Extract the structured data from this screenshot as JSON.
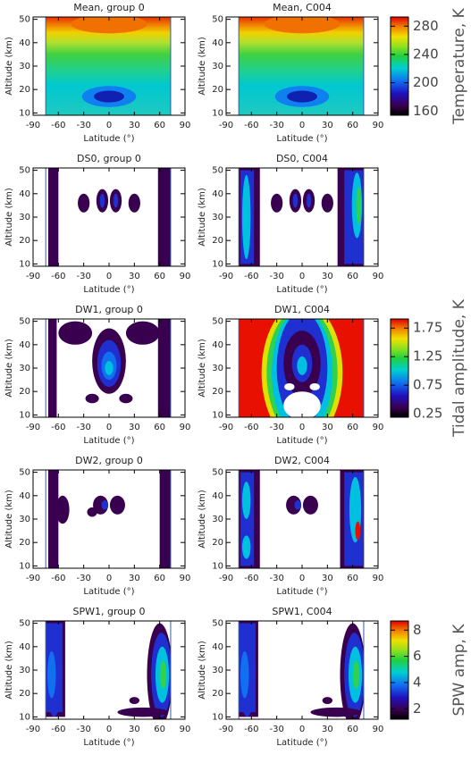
{
  "chart_data": [
    {
      "type": "contour",
      "title": "Mean, group 0",
      "xlabel": "Latitude (°)",
      "ylabel": "Altitude (km)",
      "xlim": [
        -90,
        90
      ],
      "xticks": [
        -90,
        -60,
        -30,
        0,
        30,
        60,
        90
      ],
      "ylim": [
        9,
        51
      ],
      "yticks": [
        10,
        20,
        30,
        40,
        50
      ]
    },
    {
      "type": "contour",
      "title": "Mean, C004",
      "xlabel": "Latitude (°)",
      "ylabel": "Altitude (km)",
      "xlim": [
        -90,
        90
      ],
      "xticks": [
        -90,
        -60,
        -30,
        0,
        30,
        60,
        90
      ],
      "ylim": [
        9,
        51
      ],
      "yticks": [
        10,
        20,
        30,
        40,
        50
      ]
    },
    {
      "type": "contour",
      "title": "DS0, group 0",
      "xlabel": "Latitude (°)",
      "ylabel": "Altitude (km)",
      "xlim": [
        -90,
        90
      ],
      "xticks": [
        -90,
        -60,
        -30,
        0,
        30,
        60,
        90
      ],
      "ylim": [
        9,
        51
      ],
      "yticks": [
        10,
        20,
        30,
        40,
        50
      ]
    },
    {
      "type": "contour",
      "title": "DS0, C004",
      "xlabel": "Latitude (°)",
      "ylabel": "Altitude (km)",
      "xlim": [
        -90,
        90
      ],
      "xticks": [
        -90,
        -60,
        -30,
        0,
        30,
        60,
        90
      ],
      "ylim": [
        9,
        51
      ],
      "yticks": [
        10,
        20,
        30,
        40,
        50
      ]
    },
    {
      "type": "contour",
      "title": "DW1, group 0",
      "xlabel": "Latitude (°)",
      "ylabel": "Altitude (km)",
      "xlim": [
        -90,
        90
      ],
      "xticks": [
        -90,
        -60,
        -30,
        0,
        30,
        60,
        90
      ],
      "ylim": [
        9,
        51
      ],
      "yticks": [
        10,
        20,
        30,
        40,
        50
      ]
    },
    {
      "type": "contour",
      "title": "DW1, C004",
      "xlabel": "Latitude (°)",
      "ylabel": "Altitude (km)",
      "xlim": [
        -90,
        90
      ],
      "xticks": [
        -90,
        -60,
        -30,
        0,
        30,
        60,
        90
      ],
      "ylim": [
        9,
        51
      ],
      "yticks": [
        10,
        20,
        30,
        40,
        50
      ]
    },
    {
      "type": "contour",
      "title": "DW2, group 0",
      "xlabel": "Latitude (°)",
      "ylabel": "Altitude (km)",
      "xlim": [
        -90,
        90
      ],
      "xticks": [
        -90,
        -60,
        -30,
        0,
        30,
        60,
        90
      ],
      "ylim": [
        9,
        51
      ],
      "yticks": [
        10,
        20,
        30,
        40,
        50
      ]
    },
    {
      "type": "contour",
      "title": "DW2, C004",
      "xlabel": "Latitude (°)",
      "ylabel": "Altitude (km)",
      "xlim": [
        -90,
        90
      ],
      "xticks": [
        -90,
        -60,
        -30,
        0,
        30,
        60,
        90
      ],
      "ylim": [
        9,
        51
      ],
      "yticks": [
        10,
        20,
        30,
        40,
        50
      ]
    },
    {
      "type": "contour",
      "title": "SPW1, group 0",
      "xlabel": "Latitude (°)",
      "ylabel": "Altitude (km)",
      "xlim": [
        -90,
        90
      ],
      "xticks": [
        -90,
        -60,
        -30,
        0,
        30,
        60,
        90
      ],
      "ylim": [
        9,
        51
      ],
      "yticks": [
        10,
        20,
        30,
        40,
        50
      ]
    },
    {
      "type": "contour",
      "title": "SPW1, C004",
      "xlabel": "Latitude (°)",
      "ylabel": "Altitude (km)",
      "xlim": [
        -90,
        90
      ],
      "xticks": [
        -90,
        -60,
        -30,
        0,
        30,
        60,
        90
      ],
      "ylim": [
        9,
        51
      ],
      "yticks": [
        10,
        20,
        30,
        40,
        50
      ]
    }
  ],
  "colorbars": [
    {
      "label": "Temperature, K",
      "lim": [
        154,
        293
      ],
      "ticks": [
        160,
        200,
        240,
        280
      ]
    },
    {
      "label": "Tidal amplitude, K",
      "lim": [
        0.19,
        1.91
      ],
      "ticks": [
        0.25,
        0.75,
        1.25,
        1.75
      ]
    },
    {
      "label": "SPW amp, K",
      "lim": [
        1.2,
        8.7
      ],
      "ticks": [
        2,
        4,
        6,
        8
      ]
    }
  ]
}
